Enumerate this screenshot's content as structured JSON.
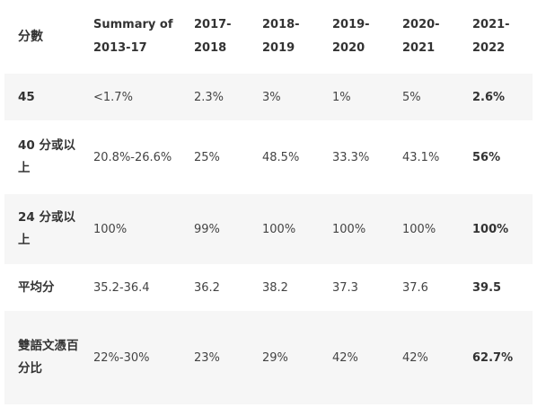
{
  "table": {
    "headers": [
      "分數",
      "Summary of 2013-17",
      "2017-2018",
      "2018-2019",
      "2019-2020",
      "2020-2021",
      "2021-2022"
    ],
    "rows": [
      {
        "label": "45",
        "values": [
          "<1.7%",
          "2.3%",
          "3%",
          "1%",
          "5%",
          "2.6%"
        ],
        "height": 52
      },
      {
        "label": "40 分或以上",
        "values": [
          "20.8%-26.6%",
          "25%",
          "48.5%",
          "33.3%",
          "43.1%",
          "56%"
        ],
        "height": 82
      },
      {
        "label": "24 分或以上",
        "values": [
          "100%",
          "99%",
          "100%",
          "100%",
          "100%",
          "100%"
        ],
        "height": 78
      },
      {
        "label": "平均分",
        "values": [
          "35.2-36.4",
          "36.2",
          "38.2",
          "37.3",
          "37.6",
          "39.5"
        ],
        "height": 52
      },
      {
        "label": "雙語文憑百分比",
        "values": [
          "22%-30%",
          "23%",
          "29%",
          "42%",
          "42%",
          "62.7%"
        ],
        "height": 104
      }
    ]
  }
}
